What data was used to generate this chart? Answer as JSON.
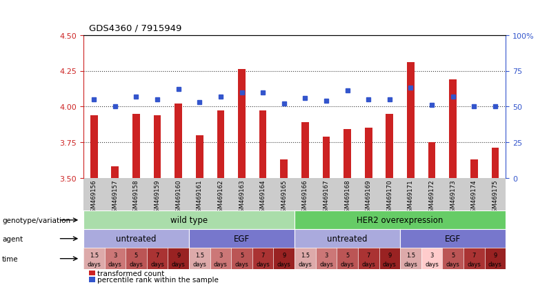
{
  "title": "GDS4360 / 7915949",
  "samples": [
    "GSM469156",
    "GSM469157",
    "GSM469158",
    "GSM469159",
    "GSM469160",
    "GSM469161",
    "GSM469162",
    "GSM469163",
    "GSM469164",
    "GSM469165",
    "GSM469166",
    "GSM469167",
    "GSM469168",
    "GSM469169",
    "GSM469170",
    "GSM469171",
    "GSM469172",
    "GSM469173",
    "GSM469174",
    "GSM469175"
  ],
  "transformed_count": [
    3.94,
    3.58,
    3.95,
    3.94,
    4.02,
    3.8,
    3.97,
    4.26,
    3.97,
    3.63,
    3.89,
    3.79,
    3.84,
    3.85,
    3.95,
    4.31,
    3.75,
    4.19,
    3.63,
    3.71
  ],
  "percentile_rank": [
    55,
    50,
    57,
    55,
    62,
    53,
    57,
    60,
    60,
    52,
    56,
    54,
    61,
    55,
    55,
    63,
    51,
    57,
    50,
    50
  ],
  "ylim_left": [
    3.5,
    4.5
  ],
  "ylim_right": [
    0,
    100
  ],
  "yticks_left": [
    3.5,
    3.75,
    4.0,
    4.25,
    4.5
  ],
  "yticks_right": [
    0,
    25,
    50,
    75,
    100
  ],
  "bar_color": "#cc2222",
  "marker_color": "#3355cc",
  "bar_base": 3.5,
  "genotype_blocks": [
    {
      "label": "wild type",
      "start": 0,
      "end": 10,
      "color": "#aaddaa"
    },
    {
      "label": "HER2 overexpression",
      "start": 10,
      "end": 20,
      "color": "#66cc66"
    }
  ],
  "agent_blocks": [
    {
      "label": "untreated",
      "start": 0,
      "end": 5,
      "color": "#aaaadd"
    },
    {
      "label": "EGF",
      "start": 5,
      "end": 10,
      "color": "#7777cc"
    },
    {
      "label": "untreated",
      "start": 10,
      "end": 15,
      "color": "#aaaadd"
    },
    {
      "label": "EGF",
      "start": 15,
      "end": 20,
      "color": "#7777cc"
    }
  ],
  "time_labels": [
    {
      "label": "1.5\ndays",
      "idx": 0,
      "color": "#ddaaaa"
    },
    {
      "label": "3\ndays",
      "idx": 1,
      "color": "#cc7777"
    },
    {
      "label": "5\ndays",
      "idx": 2,
      "color": "#bb5555"
    },
    {
      "label": "7\ndays",
      "idx": 3,
      "color": "#aa3333"
    },
    {
      "label": "9\ndays",
      "idx": 4,
      "color": "#992222"
    },
    {
      "label": "1.5\ndays",
      "idx": 5,
      "color": "#ddaaaa"
    },
    {
      "label": "3\ndays",
      "idx": 6,
      "color": "#cc7777"
    },
    {
      "label": "5\ndays",
      "idx": 7,
      "color": "#bb5555"
    },
    {
      "label": "7\ndays",
      "idx": 8,
      "color": "#aa3333"
    },
    {
      "label": "9\ndays",
      "idx": 9,
      "color": "#992222"
    },
    {
      "label": "1.5\ndays",
      "idx": 10,
      "color": "#ddaaaa"
    },
    {
      "label": "3\ndays",
      "idx": 11,
      "color": "#cc7777"
    },
    {
      "label": "5\ndays",
      "idx": 12,
      "color": "#bb5555"
    },
    {
      "label": "7\ndays",
      "idx": 13,
      "color": "#aa3333"
    },
    {
      "label": "9\ndays",
      "idx": 14,
      "color": "#992222"
    },
    {
      "label": "1.5\ndays",
      "idx": 15,
      "color": "#ddaaaa"
    },
    {
      "label": "3\ndays",
      "idx": 16,
      "color": "#ffcccc"
    },
    {
      "label": "5\ndays",
      "idx": 17,
      "color": "#bb5555"
    },
    {
      "label": "7\ndays",
      "idx": 18,
      "color": "#aa3333"
    },
    {
      "label": "9\ndays",
      "idx": 19,
      "color": "#992222"
    }
  ],
  "sample_band_color": "#cccccc",
  "left_label_color": "#333333",
  "grid_dotted_color": "#444444",
  "spine_color": "#000000"
}
